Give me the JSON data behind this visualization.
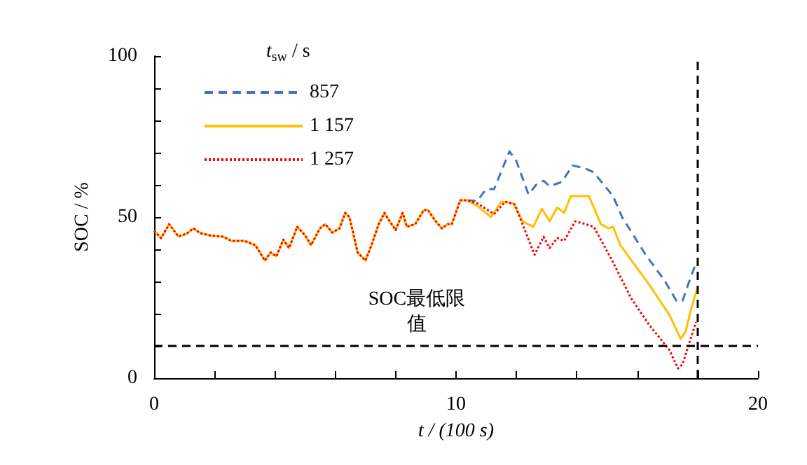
{
  "chart_data": {
    "type": "line",
    "xlabel": "t / (100 s)",
    "ylabel": "SOC / %",
    "legend_title": "t$_{sw}$ / s",
    "legend": "top left",
    "grid": false,
    "marker": "none",
    "xlim": [
      0,
      20
    ],
    "ylim": [
      0,
      100
    ],
    "xticks": [
      0,
      {
        "value": 2,
        "label": null
      },
      {
        "value": 4,
        "label": null
      },
      {
        "value": 6,
        "label": null
      },
      {
        "value": 8,
        "label": null
      },
      10,
      {
        "value": 12,
        "label": null
      },
      {
        "value": 14,
        "label": null
      },
      {
        "value": 16,
        "label": null
      },
      {
        "value": 18,
        "label": null
      },
      20
    ],
    "yticks": [
      0,
      {
        "value": 10,
        "label": null
      },
      {
        "value": 20,
        "label": null
      },
      {
        "value": 30,
        "label": null
      },
      {
        "value": 40,
        "label": null
      },
      50,
      {
        "value": 60,
        "label": null
      },
      {
        "value": 70,
        "label": null
      },
      {
        "value": 80,
        "label": null
      },
      {
        "value": 90,
        "label": null
      },
      100
    ],
    "ref_lines": [
      {
        "axis": "y",
        "value": 10,
        "label": "SOC最低限值",
        "color": "#000000",
        "line_style": "dashed"
      },
      {
        "axis": "x",
        "value": 18,
        "color": "#000000",
        "line_style": "dashed"
      }
    ],
    "series": [
      {
        "name": "857",
        "color": "#4472c4",
        "line_style": "dashed",
        "x": [
          10.37,
          10.7,
          11.0,
          11.26,
          11.77,
          12.0,
          12.4,
          12.65,
          12.9,
          13.1,
          13.5,
          13.86,
          14.26,
          14.56,
          15.2,
          15.5,
          16.28,
          16.9,
          17.3,
          17.5,
          17.77,
          17.95
        ],
        "values": [
          55.2,
          55,
          58.7,
          58.7,
          70.4,
          67.4,
          57,
          60,
          61.3,
          59.6,
          60.9,
          66,
          65.2,
          63.9,
          56.5,
          50,
          38.3,
          30.4,
          24,
          24,
          31.3,
          35.7
        ]
      },
      {
        "name": "1 157",
        "color": "#ffc000",
        "line_style": "solid",
        "x": [
          0,
          0.23,
          0.5,
          0.8,
          1.07,
          1.3,
          1.53,
          1.86,
          2.3,
          2.56,
          3.0,
          3.35,
          3.67,
          3.86,
          4.05,
          4.28,
          4.47,
          4.74,
          5.0,
          5.2,
          5.49,
          5.67,
          5.9,
          6.14,
          6.33,
          6.47,
          6.74,
          7.0,
          7.2,
          7.44,
          7.63,
          7.8,
          8.0,
          8.23,
          8.37,
          8.65,
          8.93,
          9.07,
          9.3,
          9.53,
          9.72,
          9.86,
          10.14,
          10.37,
          10.7,
          11.16,
          11.5,
          11.9,
          12.2,
          12.56,
          12.84,
          13.1,
          13.35,
          13.58,
          13.8,
          14.2,
          14.4,
          14.8,
          15.05,
          15.2,
          15.44,
          16.4,
          17.07,
          17.44,
          17.6,
          17.77,
          18.0
        ],
        "values": [
          45.7,
          43.5,
          47.8,
          44,
          44.8,
          46.5,
          45,
          44.3,
          43.9,
          42.6,
          42.6,
          41.3,
          36.5,
          39,
          37.8,
          43,
          40.4,
          47,
          44.3,
          41.3,
          46.5,
          47.8,
          45.2,
          46.5,
          51.3,
          50,
          39,
          36.5,
          41.3,
          47.8,
          51.3,
          48.7,
          46,
          51.3,
          47,
          47.8,
          52.2,
          52.2,
          49,
          46.5,
          47.8,
          47.8,
          55.2,
          55.2,
          53.5,
          50,
          54.8,
          54.3,
          48.7,
          47,
          52.6,
          48.7,
          53,
          51.3,
          56.5,
          56.5,
          56.5,
          47.8,
          46.5,
          47,
          41.3,
          29,
          19.6,
          12.2,
          14.3,
          20.9,
          28.3
        ]
      },
      {
        "name": "1 257",
        "color": "#ff0000",
        "line_style": "dotted",
        "x": [
          0,
          0.23,
          0.5,
          0.8,
          1.07,
          1.3,
          1.53,
          1.86,
          2.3,
          2.56,
          3.0,
          3.35,
          3.67,
          3.86,
          4.05,
          4.28,
          4.47,
          4.74,
          5.0,
          5.2,
          5.49,
          5.67,
          5.9,
          6.14,
          6.33,
          6.47,
          6.74,
          7.0,
          7.2,
          7.44,
          7.63,
          7.8,
          8.0,
          8.23,
          8.37,
          8.65,
          8.93,
          9.07,
          9.3,
          9.53,
          9.72,
          9.86,
          10.14,
          10.37,
          10.7,
          11.26,
          11.63,
          11.95,
          12.2,
          12.6,
          12.9,
          13.1,
          13.35,
          13.58,
          13.95,
          14.3,
          14.56,
          15.2,
          15.8,
          16.4,
          17.07,
          17.35,
          17.5,
          17.77,
          17.95
        ],
        "values": [
          45.7,
          43.5,
          47.8,
          44,
          44.8,
          46.5,
          45,
          44.3,
          43.9,
          42.6,
          42.6,
          41.3,
          36.5,
          39,
          37.8,
          43,
          40.4,
          47,
          44.3,
          41.3,
          46.5,
          47.8,
          45.2,
          46.5,
          51.3,
          50,
          39,
          36.5,
          41.3,
          47.8,
          51.3,
          48.7,
          46,
          51.3,
          47,
          47.8,
          52.2,
          52.2,
          49,
          46.5,
          47.8,
          47.8,
          55.2,
          55.2,
          54.3,
          50.9,
          54.8,
          53.9,
          47.8,
          38.3,
          43.9,
          40.4,
          43.5,
          42.6,
          48.7,
          47.8,
          47,
          36,
          24.8,
          16.5,
          8.7,
          3,
          4.3,
          12.2,
          17.4
        ]
      }
    ]
  }
}
